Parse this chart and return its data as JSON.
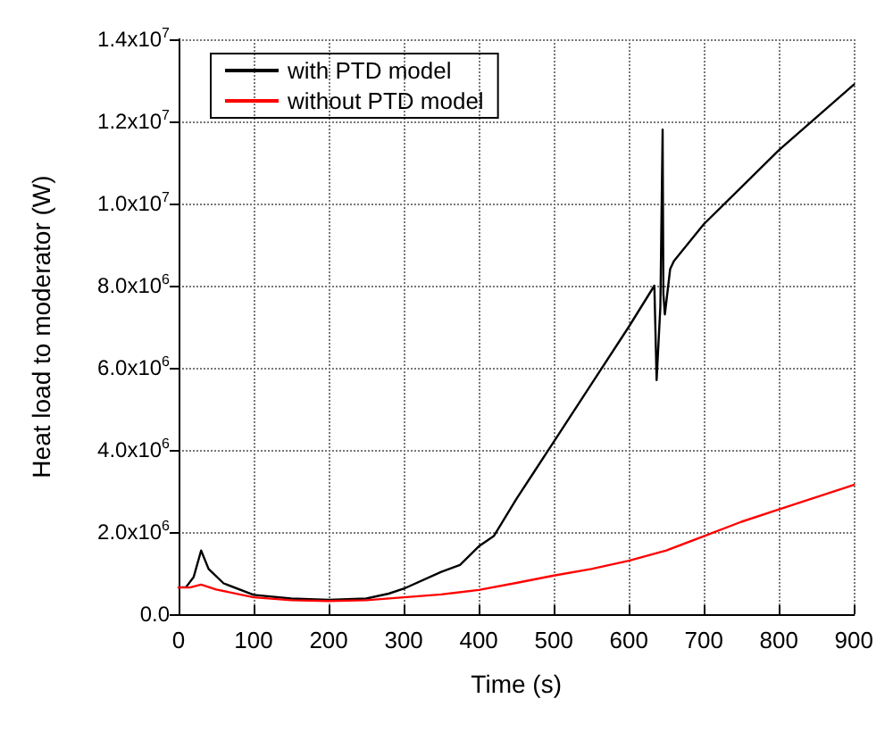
{
  "chart_data": {
    "type": "line",
    "xlabel": "Time (s)",
    "ylabel": "Heat load to moderator (W)",
    "xlim": [
      0,
      900
    ],
    "xticks": [
      0,
      100,
      200,
      300,
      400,
      500,
      600,
      700,
      800,
      900
    ],
    "ylim": [
      0,
      14000000
    ],
    "yticks": [
      {
        "value": 0,
        "label": "0.0"
      },
      {
        "value": 2000000,
        "label": "2.0x10$^{6}$"
      },
      {
        "value": 4000000,
        "label": "4.0x10$^{6}$"
      },
      {
        "value": 6000000,
        "label": "6.0x10$^{6}$"
      },
      {
        "value": 8000000,
        "label": "8.0x10$^{6}$"
      },
      {
        "value": 10000000,
        "label": "1.0x10$^{7}$"
      },
      {
        "value": 12000000,
        "label": "1.2x10$^{7}$"
      },
      {
        "value": 14000000,
        "label": "1.4x10$^{7}$"
      }
    ],
    "grid": true,
    "legend": "top left",
    "marker": "none",
    "line_style": "solid",
    "series": [
      {
        "name": "with PTD model",
        "color": "#000000",
        "x": [
          0,
          10,
          20,
          30,
          40,
          60,
          100,
          150,
          200,
          250,
          280,
          300,
          350,
          375,
          400,
          420,
          450,
          475,
          500,
          550,
          600,
          634,
          637,
          642,
          645,
          646,
          648,
          655,
          660,
          700,
          750,
          800,
          850,
          900
        ],
        "values": [
          650000,
          660000,
          900000,
          1550000,
          1100000,
          750000,
          470000,
          380000,
          350000,
          380000,
          500000,
          620000,
          1030000,
          1200000,
          1650000,
          1900000,
          2800000,
          3500000,
          4200000,
          5600000,
          7000000,
          8000000,
          5700000,
          7500000,
          11800000,
          7800000,
          7300000,
          8400000,
          8600000,
          9500000,
          10400000,
          11300000,
          12100000,
          12900000
        ]
      },
      {
        "name": "without PTD model",
        "color": "#ff0000",
        "x": [
          0,
          15,
          30,
          50,
          100,
          150,
          200,
          250,
          300,
          350,
          400,
          450,
          500,
          550,
          600,
          650,
          700,
          750,
          800,
          850,
          900
        ],
        "values": [
          650000,
          650000,
          720000,
          600000,
          410000,
          340000,
          320000,
          340000,
          410000,
          480000,
          590000,
          760000,
          940000,
          1100000,
          1300000,
          1550000,
          1900000,
          2250000,
          2550000,
          2850000,
          3150000
        ]
      }
    ]
  }
}
